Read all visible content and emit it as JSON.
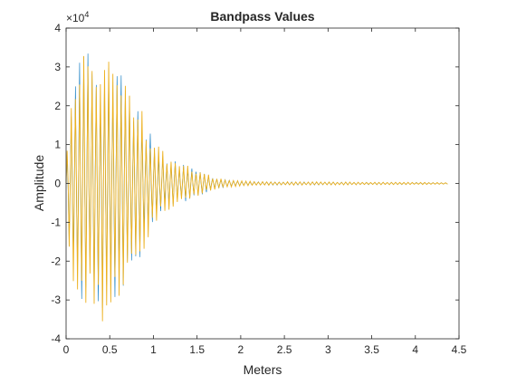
{
  "chart_data": {
    "type": "line",
    "title": "Bandpass Values",
    "xlabel": "Meters",
    "ylabel": "Amplitude",
    "xlim": [
      0,
      4.5
    ],
    "ylim": [
      -40000,
      40000
    ],
    "y_exponent_label": "×10",
    "y_exponent": "4",
    "x_ticks": [
      0,
      0.5,
      1,
      1.5,
      2,
      2.5,
      3,
      3.5,
      4,
      4.5
    ],
    "x_tick_labels": [
      "0",
      "0.5",
      "1",
      "1.5",
      "2",
      "2.5",
      "3",
      "3.5",
      "4",
      "4.5"
    ],
    "y_ticks": [
      -40000,
      -30000,
      -20000,
      -10000,
      0,
      10000,
      20000,
      30000,
      40000
    ],
    "y_tick_labels": [
      "-4",
      "-3",
      "-2",
      "-1",
      "0",
      "1",
      "2",
      "3",
      "4"
    ],
    "grid": false,
    "legend": "none",
    "x_end": 4.38,
    "series": [
      {
        "color": "#EDB120",
        "envelope": {
          "x": [
            0,
            0.04,
            0.1,
            0.2,
            0.3,
            0.4,
            0.5,
            0.6,
            0.7,
            0.8,
            0.9,
            1.0,
            1.1,
            1.2,
            1.3,
            1.4,
            1.5,
            1.6,
            1.7,
            1.8,
            1.9,
            2.0,
            2.2,
            2.5,
            3.0,
            3.5,
            4.0,
            4.38
          ],
          "upper": [
            5000,
            18000,
            30000,
            36000,
            35000,
            30000,
            36000,
            33000,
            28000,
            22000,
            18000,
            11000,
            8500,
            7000,
            5500,
            4500,
            3500,
            2500,
            1700,
            1200,
            900,
            700,
            500,
            450,
            400,
            350,
            300,
            200
          ],
          "lower": [
            -5000,
            -20000,
            -33000,
            -34000,
            -33000,
            -36000,
            -38000,
            -30000,
            -27000,
            -23000,
            -18000,
            -11000,
            -8000,
            -6500,
            -5500,
            -4500,
            -3500,
            -2500,
            -1700,
            -1200,
            -900,
            -700,
            -500,
            -450,
            -400,
            -350,
            -300,
            -200
          ]
        },
        "oscillations_per_meter": 21
      },
      {
        "color": "#0072BD",
        "envelope_scale": 0.97,
        "phase_offset": 0.15,
        "note": ""
      }
    ]
  }
}
